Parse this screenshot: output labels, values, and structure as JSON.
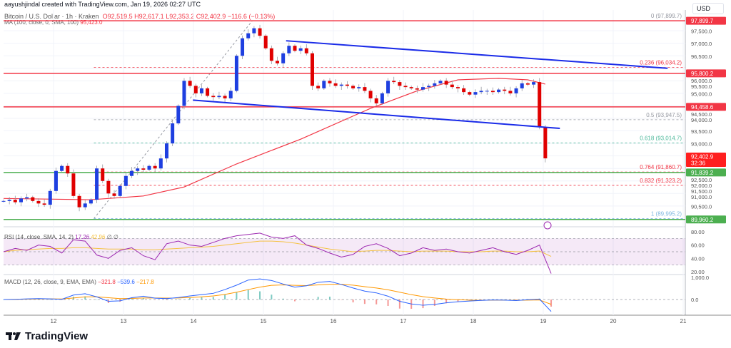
{
  "credit": "aayushjindal created with TradingView.com, Jan 19, 2026 02:27 UTC",
  "legend": {
    "symbol": "Bitcoin / U.S. Dollar · 1h · Kraken",
    "open": "O92,519.5",
    "high": "H92,617.1",
    "low": "L92,353.2",
    "close": "C92,402.9",
    "change": "−116.6 (−0.13%)"
  },
  "ma_legend": {
    "label": "MA (100, close, 0, SMA, 100)",
    "value": "95,423.0"
  },
  "rsi_legend": {
    "label": "RSI (14, close, SMA, 14, 2)",
    "rsi": "17.26",
    "sma": "42.96",
    "extra1": "∅",
    "extra2": "∅"
  },
  "macd_legend": {
    "label": "MACD (12, 26, close, 9, EMA, EMA)",
    "hist": "−321.8",
    "macd": "−539.6",
    "signal": "−217.8"
  },
  "currency": "USD",
  "logo": "TradingView",
  "colors": {
    "up": "#1e3fe0",
    "down": "#e00000",
    "ma": "#f23645",
    "trendline": "#1a2be8",
    "rsi": "#9c27b0",
    "rsi_sma": "#f5c242",
    "macd": "#2962ff",
    "signal": "#ff9800",
    "support": "#4caf50"
  },
  "price_axis": [
    "97,500.0",
    "97,000.0",
    "96,500.0",
    "96,000.0",
    "95,500.0",
    "95,000.0",
    "94,500.0",
    "94,000.0",
    "93,500.0",
    "93,000.0",
    "92,500.0",
    "92,000.0",
    "91,500.0",
    "91,000.0",
    "90,500.0"
  ],
  "rsi_axis": [
    "80.00",
    "60.00",
    "40.00",
    "20.00"
  ],
  "macd_axis": [
    "1,000.0",
    "0.0"
  ],
  "time_axis": [
    "12",
    "13",
    "14",
    "15",
    "16",
    "17",
    "18",
    "19",
    "20",
    "21"
  ],
  "price_tags": [
    {
      "text": "97,899.7",
      "price": 97899.7,
      "color": "#f23645"
    },
    {
      "text": "95,800.2",
      "price": 95800.2,
      "color": "#f23645"
    },
    {
      "text": "94,458.6",
      "price": 94458.6,
      "color": "#f23645"
    },
    {
      "text": "91,839.2",
      "price": 91839.2,
      "color": "#4caf50"
    },
    {
      "text": "89,960.2",
      "price": 89960.2,
      "color": "#4caf50"
    }
  ],
  "last_price": {
    "text": "92,402.9",
    "countdown": "32:36",
    "price": 92402.9,
    "color": "#ff1f1f"
  },
  "horizontal_lines": [
    {
      "price": 97899.7,
      "color": "#f23645"
    },
    {
      "price": 95800.2,
      "color": "#f23645"
    },
    {
      "price": 94458.6,
      "color": "#f23645"
    },
    {
      "price": 91839.2,
      "color": "#4caf50"
    },
    {
      "price": 89960.2,
      "color": "#4caf50"
    }
  ],
  "fib_levels": [
    {
      "label": "0 (97,899.7)",
      "price": 97899.7,
      "color": "#9598a1"
    },
    {
      "label": "0.236 (96,034.2)",
      "price": 96034.2,
      "color": "#f23645"
    },
    {
      "label": "0.5 (93,947.5)",
      "price": 93947.5,
      "color": "#9598a1"
    },
    {
      "label": "0.618 (93,014.7)",
      "price": 93014.7,
      "color": "#4cb89a"
    },
    {
      "label": "0.764 (91,860.7)",
      "price": 91860.7,
      "color": "#f23645"
    },
    {
      "label": "0.832 (91,323.2)",
      "price": 91323.2,
      "color": "#f23645"
    },
    {
      "label": "1 (89,995.2)",
      "price": 89995.2,
      "color": "#7fb8e0"
    }
  ],
  "chart_data": {
    "type": "candlestick",
    "interval": "2 candles of 1h per point (approx.)",
    "start_day": 11.29,
    "closes": [
      90700,
      90750,
      90650,
      90800,
      90850,
      90700,
      90600,
      90550,
      91100,
      91900,
      92100,
      91800,
      90900,
      90450,
      90600,
      90750,
      92000,
      91500,
      91000,
      90900,
      91300,
      91700,
      91900,
      92000,
      91950,
      92100,
      92000,
      92400,
      93000,
      93800,
      94500,
      95500,
      95300,
      95000,
      95200,
      94900,
      94850,
      94900,
      94800,
      95100,
      96500,
      97200,
      97400,
      97600,
      97300,
      96800,
      96300,
      96200,
      96600,
      96900,
      96700,
      96800,
      96600,
      95300,
      95200,
      95500,
      95400,
      95300,
      95350,
      95300,
      95200,
      95250,
      95100,
      94800,
      94600,
      95000,
      95500,
      95450,
      95300,
      95250,
      95200,
      95150,
      95250,
      95300,
      95400,
      95500,
      95350,
      95250,
      95200,
      95050,
      94950,
      95050,
      95100,
      95100,
      95050,
      95150,
      95100,
      95000,
      95200,
      95400,
      95350,
      95450,
      93650,
      92402.9
    ],
    "ma_100": [
      [
        0,
        90800
      ],
      [
        15,
        90750
      ],
      [
        24,
        90900
      ],
      [
        31,
        91260
      ],
      [
        40,
        92180
      ],
      [
        51,
        93170
      ],
      [
        63,
        94400
      ],
      [
        71,
        95100
      ],
      [
        78,
        95540
      ],
      [
        85,
        95600
      ],
      [
        90,
        95540
      ],
      [
        93,
        95370
      ]
    ],
    "trendlines": [
      {
        "from": [
          48.5,
          97100
        ],
        "to": [
          114,
          96000
        ]
      },
      {
        "from": [
          32.5,
          94730
        ],
        "to": [
          95.5,
          93600
        ]
      }
    ],
    "fib_anchor": {
      "from": [
        15.5,
        89995.2
      ],
      "to": [
        42.7,
        97899.7
      ]
    },
    "rsi": [
      50,
      55,
      52,
      60,
      58,
      48,
      68,
      66,
      45,
      40,
      52,
      56,
      44,
      38,
      62,
      66,
      60,
      58,
      64,
      70,
      74,
      76,
      78,
      72,
      70,
      74,
      60,
      55,
      48,
      42,
      46,
      58,
      62,
      55,
      44,
      48,
      56,
      52,
      54,
      50,
      48,
      52,
      56,
      50,
      46,
      52,
      60,
      17.26
    ],
    "rsi_sma": [
      50,
      52,
      53,
      54,
      55,
      55,
      56,
      56,
      55,
      54,
      54,
      54,
      53,
      53,
      54,
      55,
      56,
      57,
      58,
      60,
      62,
      64,
      66,
      66,
      65,
      63,
      60,
      57,
      54,
      52,
      50,
      51,
      52,
      52,
      51,
      50,
      51,
      51,
      51,
      50,
      50,
      50,
      51,
      51,
      50,
      50,
      51,
      42.96
    ],
    "macd": [
      0,
      10,
      30,
      40,
      30,
      10,
      200,
      260,
      120,
      -80,
      -60,
      80,
      150,
      60,
      40,
      90,
      160,
      220,
      280,
      450,
      650,
      880,
      930,
      860,
      700,
      560,
      620,
      780,
      820,
      680,
      520,
      380,
      300,
      150,
      -80,
      -200,
      -260,
      -220,
      -150,
      -100,
      -70,
      -40,
      -20,
      -30,
      -50,
      -10,
      20,
      -539.6
    ],
    "signal": [
      0,
      5,
      15,
      25,
      28,
      25,
      70,
      120,
      120,
      80,
      40,
      50,
      70,
      70,
      65,
      70,
      90,
      120,
      160,
      230,
      330,
      450,
      560,
      640,
      660,
      640,
      630,
      660,
      690,
      690,
      650,
      580,
      520,
      440,
      330,
      220,
      130,
      70,
      20,
      -10,
      -30,
      -35,
      -30,
      -30,
      -35,
      -30,
      -20,
      -217.8
    ],
    "rsi_range": [
      0,
      100
    ],
    "macd_zero": 0
  }
}
